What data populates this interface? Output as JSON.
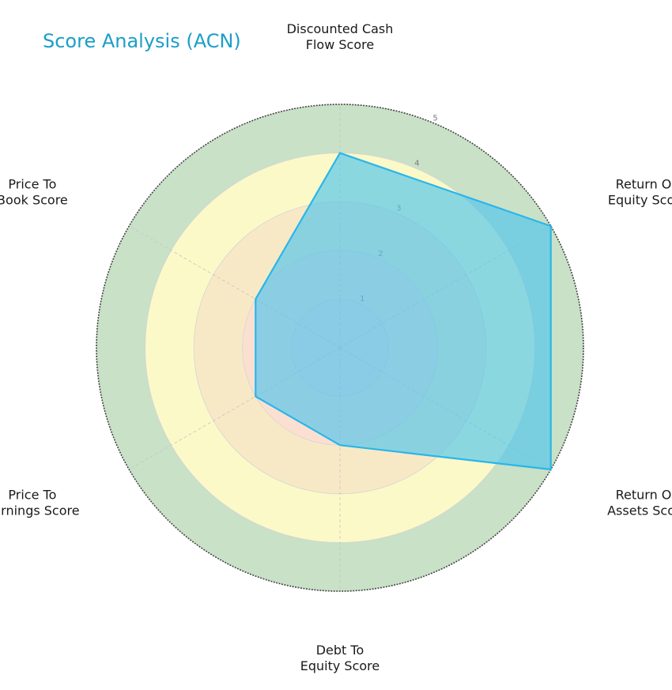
{
  "chart_data": {
    "type": "radar",
    "title": "Score Analysis (ACN)",
    "axes": [
      [
        "Discounted Cash",
        "Flow Score"
      ],
      [
        "Return On",
        "Equity Score"
      ],
      [
        "Return On",
        "Assets Score"
      ],
      [
        "Debt To",
        "Equity Score"
      ],
      [
        "Price To",
        "Earnings Score"
      ],
      [
        "Price To",
        "Book Score"
      ]
    ],
    "values": [
      4,
      5,
      5,
      2,
      2,
      2
    ],
    "rmax": 5,
    "radial_ticks": [
      "1",
      "2",
      "3",
      "4",
      "5"
    ],
    "bands": [
      {
        "from": 0,
        "to": 1,
        "color": "#f8d7d7"
      },
      {
        "from": 1,
        "to": 2,
        "color": "#fbe0d2"
      },
      {
        "from": 2,
        "to": 3,
        "color": "#f8e9c6"
      },
      {
        "from": 3,
        "to": 4,
        "color": "#fcf9c8"
      },
      {
        "from": 4,
        "to": 5,
        "color": "#c9e1c7"
      }
    ],
    "series_color": "#29b6ea",
    "series_fill": "#4ec4ec",
    "grid": true
  }
}
